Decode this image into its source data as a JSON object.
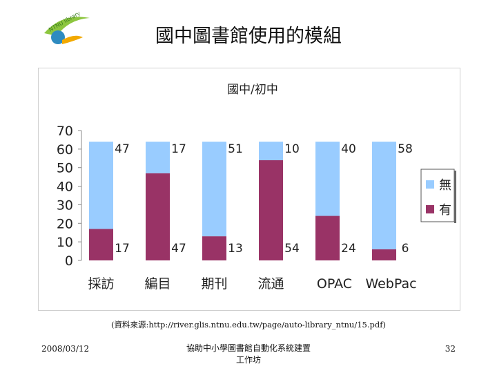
{
  "slide": {
    "title": "國中圖書館使用的模組",
    "logo_text": "NTNU library"
  },
  "chart_data": {
    "type": "bar",
    "stacked": true,
    "title": "國中/初中",
    "categories": [
      "採訪",
      "編目",
      "期刊",
      "流通",
      "OPAC",
      "WebPac"
    ],
    "series": [
      {
        "name": "有",
        "color": "#993366",
        "values": [
          17,
          47,
          13,
          54,
          24,
          6
        ]
      },
      {
        "name": "無",
        "color": "#99ccff",
        "values": [
          47,
          17,
          51,
          10,
          40,
          58
        ]
      }
    ],
    "ylim": [
      0,
      70
    ],
    "yticks": [
      "0",
      "10",
      "20",
      "30",
      "40",
      "50",
      "60",
      "70"
    ],
    "legend_position": "right",
    "legend_order": [
      "無",
      "有"
    ],
    "grid": false
  },
  "source_text": "(資料來源:http://river.glis.ntnu.edu.tw/page/auto-library_ntnu/15.pdf)",
  "footer": {
    "date": "2008/03/12",
    "center_line1": "協助中小學圖書館自動化系統建置",
    "center_line2": "工作坊",
    "page": "32"
  }
}
